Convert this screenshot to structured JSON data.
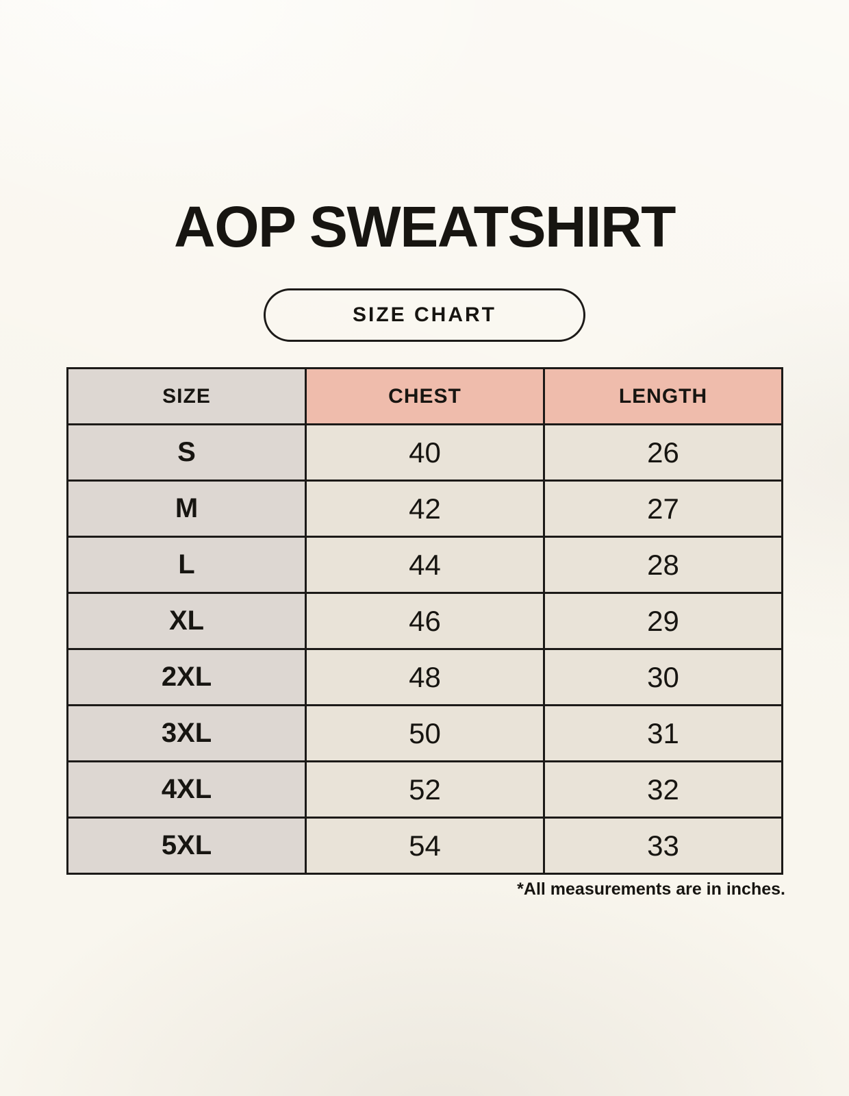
{
  "page": {
    "title": "AOP SWEATSHIRT",
    "badge_label": "SIZE CHART",
    "footnote": "*All measurements are in inches."
  },
  "chart_data": {
    "type": "table",
    "title": "AOP SWEATSHIRT",
    "subtitle": "SIZE CHART",
    "columns": [
      "SIZE",
      "CHEST",
      "LENGTH"
    ],
    "units": "inches",
    "rows": [
      {
        "size": "S",
        "chest": 40,
        "length": 26
      },
      {
        "size": "M",
        "chest": 42,
        "length": 27
      },
      {
        "size": "L",
        "chest": 44,
        "length": 28
      },
      {
        "size": "XL",
        "chest": 46,
        "length": 29
      },
      {
        "size": "2XL",
        "chest": 48,
        "length": 30
      },
      {
        "size": "3XL",
        "chest": 50,
        "length": 31
      },
      {
        "size": "4XL",
        "chest": 52,
        "length": 32
      },
      {
        "size": "5XL",
        "chest": 54,
        "length": 33
      }
    ],
    "footnote": "*All measurements are in inches."
  },
  "colors": {
    "background": "#F9F6EE",
    "accent_header": "#EFBCAC",
    "size_column": "#DDD7D2",
    "cell": "#E9E3D8",
    "border": "#1C1A18",
    "ink": "#171511"
  }
}
